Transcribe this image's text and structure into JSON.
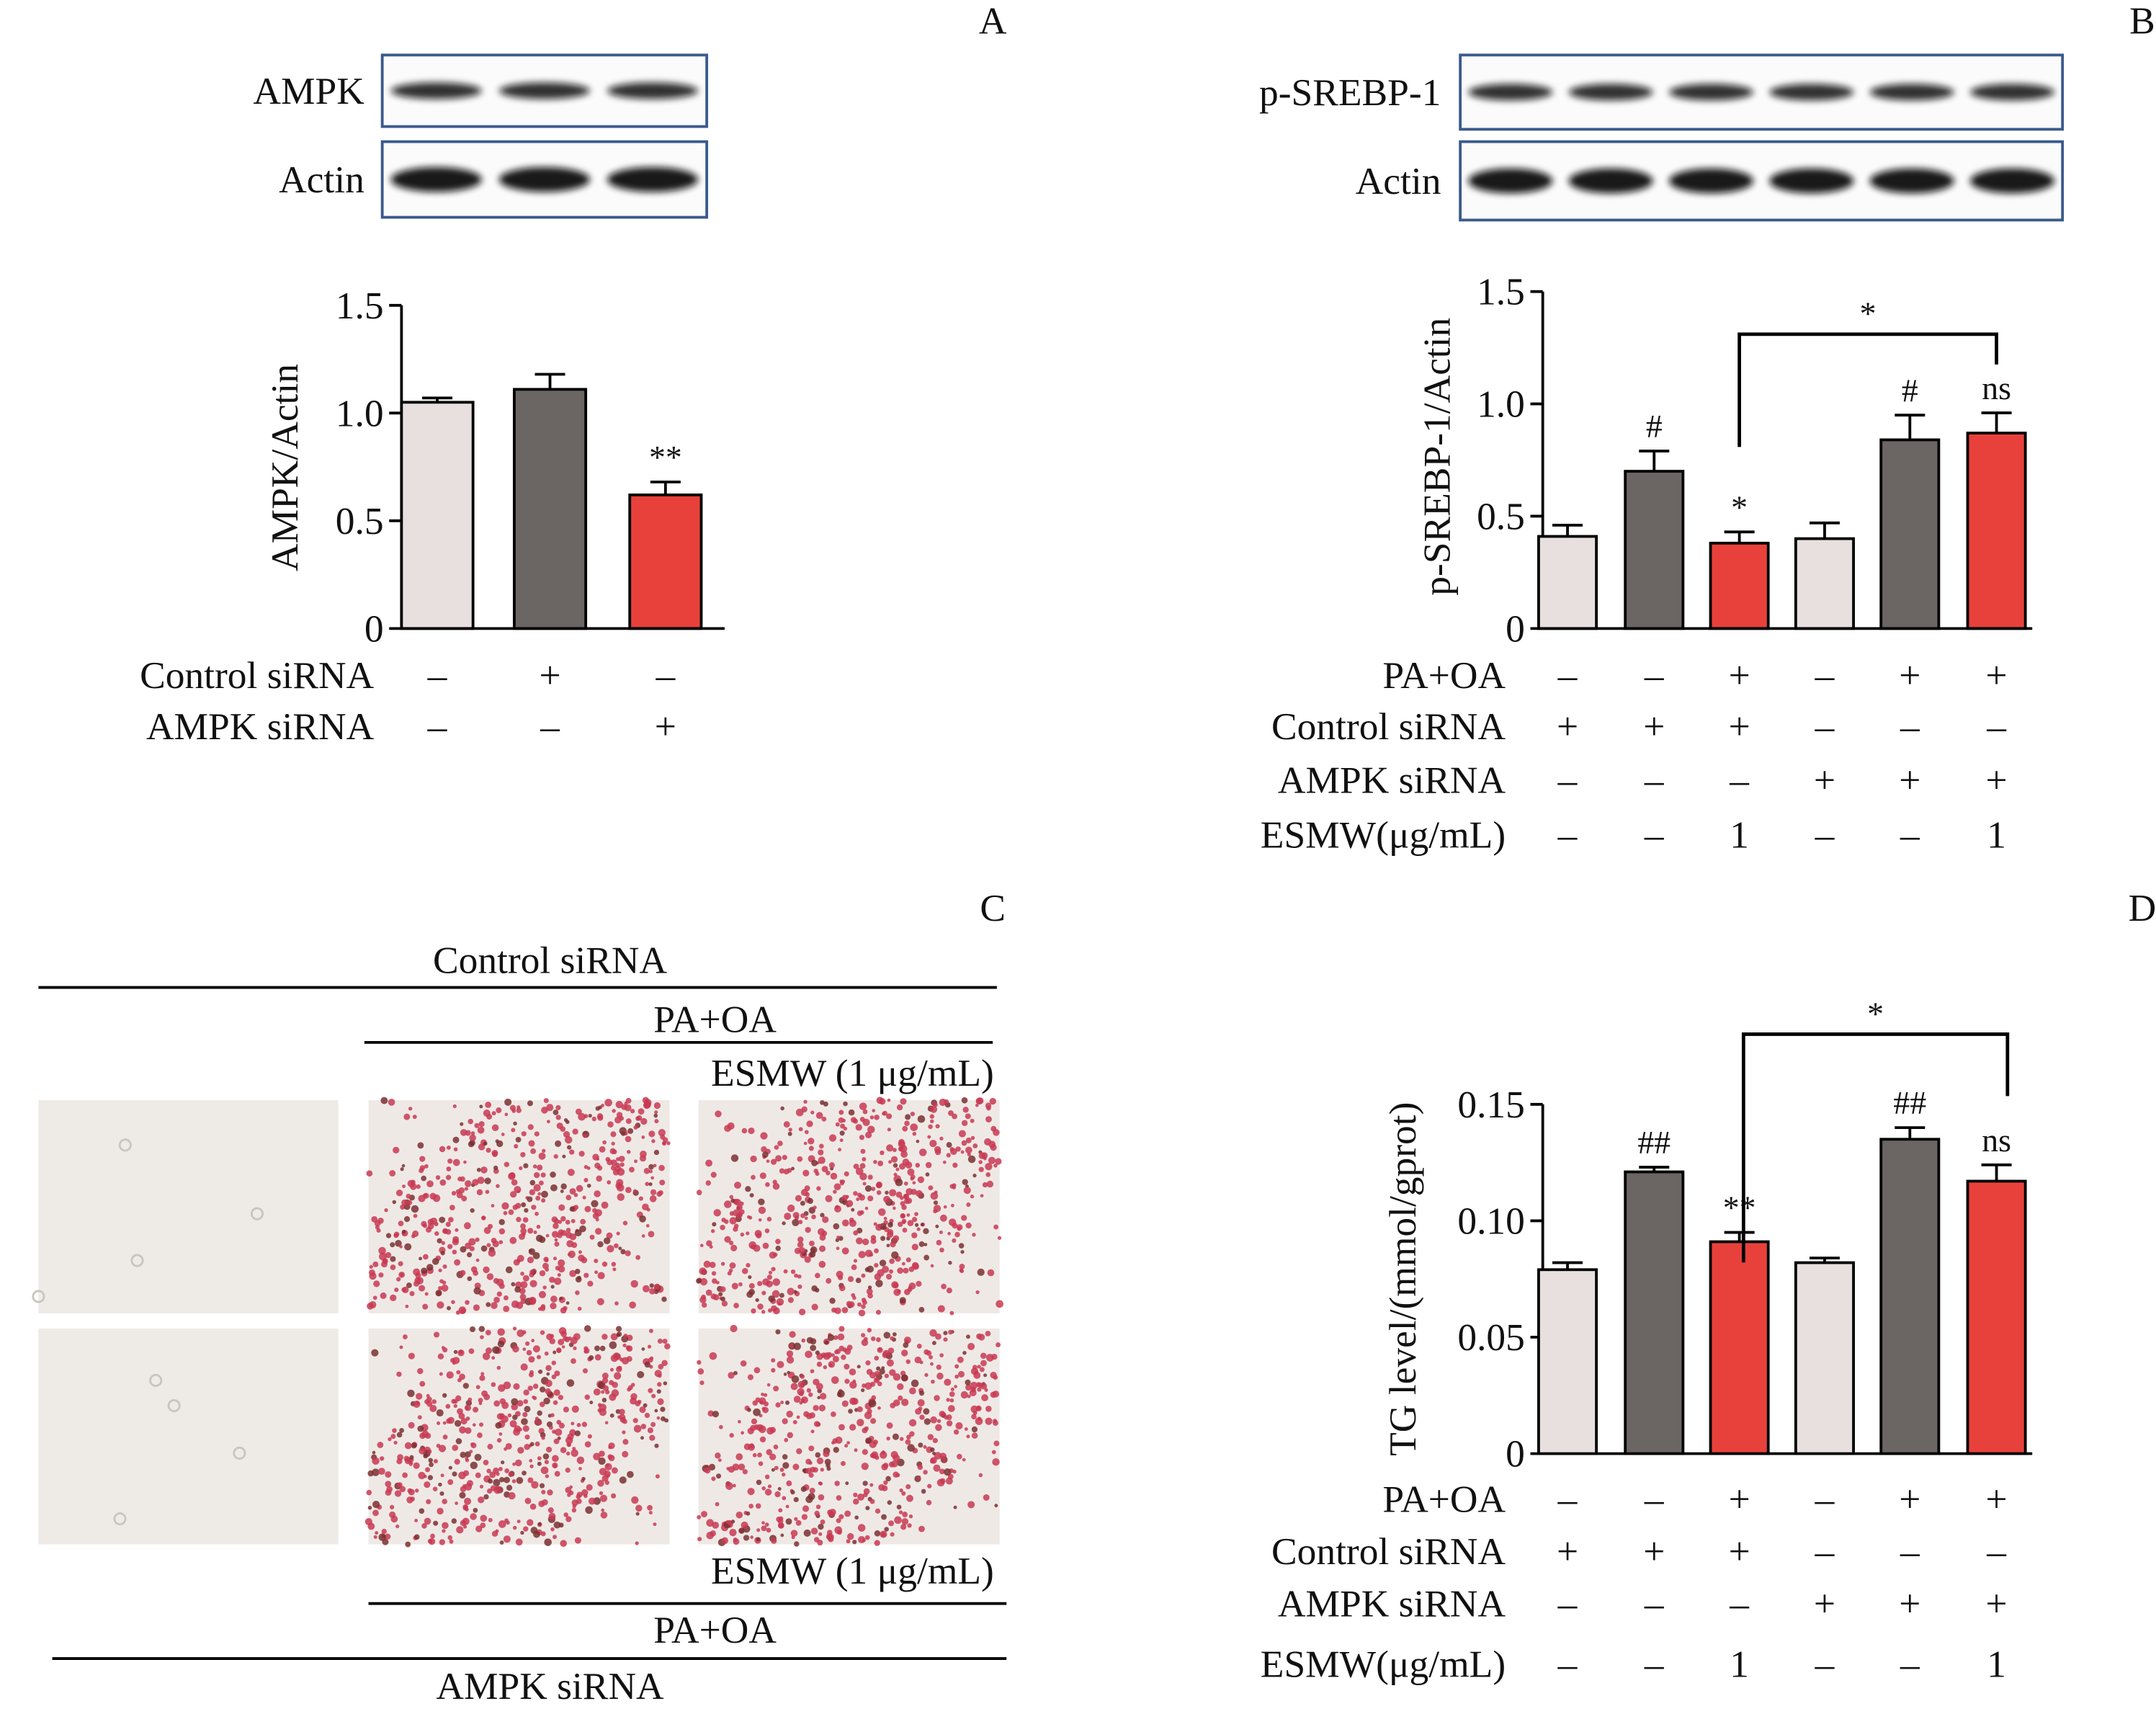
{
  "chart_data": [
    {
      "type": "bar",
      "panel": "A",
      "blots": [
        "AMPK",
        "Actin"
      ],
      "ylabel": "AMPK/Actin",
      "ylim": [
        0,
        1.5
      ],
      "yticks": [
        0,
        0.5,
        {
          "value": 1,
          "label": "1.0"
        },
        1.5
      ],
      "values": [
        1.05,
        1.11,
        0.62
      ],
      "errors": [
        0.02,
        0.07,
        0.06
      ],
      "colors": [
        "#e8e0df",
        "#6b6664",
        "#e8413c"
      ],
      "annotations": [
        null,
        null,
        "**"
      ],
      "conditions": [
        {
          "name": "Control siRNA",
          "marks": [
            "–",
            "+",
            "–"
          ]
        },
        {
          "name": "AMPK siRNA",
          "marks": [
            "–",
            "–",
            "+"
          ]
        }
      ]
    },
    {
      "type": "bar",
      "panel": "B",
      "blots": [
        "p-SREBP-1",
        "Actin"
      ],
      "ylabel": "p-SREBP-1/Actin",
      "ylim": [
        0,
        1.5
      ],
      "yticks": [
        0,
        0.5,
        {
          "value": 1,
          "label": "1.0"
        },
        1.5
      ],
      "values": [
        0.41,
        0.7,
        0.38,
        0.4,
        0.84,
        0.87
      ],
      "errors": [
        0.05,
        0.09,
        0.05,
        0.07,
        0.11,
        0.09
      ],
      "colors": [
        "#e8e0df",
        "#6b6664",
        "#e8413c",
        "#e8e0df",
        "#6b6664",
        "#e8413c"
      ],
      "annotations": [
        null,
        "#",
        "*",
        null,
        "#",
        "ns"
      ],
      "comparison": "*",
      "conditions": [
        {
          "name": "PA+OA",
          "marks": [
            "–",
            "–",
            "+",
            "–",
            "+",
            "+"
          ]
        },
        {
          "name": "Control siRNA",
          "marks": [
            "+",
            "+",
            "+",
            "–",
            "–",
            "–"
          ]
        },
        {
          "name": "AMPK siRNA",
          "marks": [
            "–",
            "–",
            "–",
            "+",
            "+",
            "+"
          ]
        },
        {
          "name": "ESMW(μg/mL)",
          "marks": [
            "–",
            "–",
            "1",
            "–",
            "–",
            "1"
          ]
        }
      ]
    },
    {
      "type": "bar",
      "panel": "D",
      "ylabel": "TG level/(mmol/gprot)",
      "ylim": [
        0,
        0.15
      ],
      "yticks": [
        0,
        0.05,
        {
          "value": 0.1,
          "label": "0.10"
        },
        0.15
      ],
      "values": [
        0.079,
        0.121,
        0.091,
        0.082,
        0.135,
        0.117
      ],
      "errors": [
        0.003,
        0.002,
        0.004,
        0.002,
        0.005,
        0.007
      ],
      "colors": [
        "#e8e0df",
        "#6b6664",
        "#e8413c",
        "#e8e0df",
        "#6b6664",
        "#e8413c"
      ],
      "annotations": [
        null,
        "##",
        "**",
        null,
        "##",
        "ns"
      ],
      "comparison": "*",
      "conditions": [
        {
          "name": "PA+OA",
          "marks": [
            "–",
            "–",
            "+",
            "–",
            "+",
            "+"
          ]
        },
        {
          "name": "Control siRNA",
          "marks": [
            "+",
            "+",
            "+",
            "–",
            "–",
            "–"
          ]
        },
        {
          "name": "AMPK siRNA",
          "marks": [
            "–",
            "–",
            "–",
            "+",
            "+",
            "+"
          ]
        },
        {
          "name": "ESMW(μg/mL)",
          "marks": [
            "–",
            "–",
            "1",
            "–",
            "–",
            "1"
          ]
        }
      ]
    }
  ],
  "image_panel": {
    "panel": "C",
    "top_labels": [
      "Control siRNA",
      "PA+OA",
      "ESMW (1 μg/mL)"
    ],
    "bottom_labels": [
      "ESMW (1 μg/mL)",
      "PA+OA",
      "AMPK siRNA"
    ]
  }
}
